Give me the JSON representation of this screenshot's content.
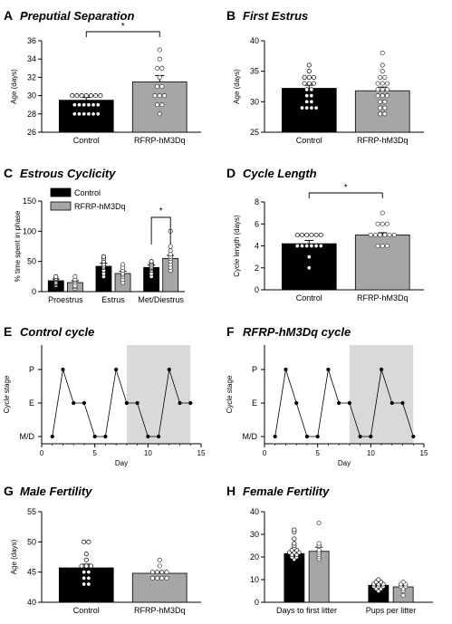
{
  "figure": {
    "panels": [
      {
        "letter": "A",
        "title": "Preputial Separation"
      },
      {
        "letter": "B",
        "title": "First Estrus"
      },
      {
        "letter": "C",
        "title": "Estrous Cyclicity"
      },
      {
        "letter": "D",
        "title": "Cycle Length"
      },
      {
        "letter": "E",
        "title": "Control cycle"
      },
      {
        "letter": "F",
        "title": "RFRP-hM3Dq cycle"
      },
      {
        "letter": "G",
        "title": "Male Fertility"
      },
      {
        "letter": "H",
        "title": "Female Fertility"
      }
    ],
    "legend": [
      {
        "label": "Control",
        "color": "#000000"
      },
      {
        "label": "RFRP-hM3Dq",
        "color": "#a6a6a6"
      }
    ],
    "colors": {
      "control": "#000000",
      "rfrp": "#a6a6a6",
      "shade": "#d9d9d9"
    }
  },
  "chart_data": [
    {
      "panel": "A",
      "type": "bar",
      "title": "Preputial Separation",
      "ylabel": "Age (days)",
      "ylim": [
        26,
        36
      ],
      "yticks": [
        26,
        28,
        30,
        32,
        34,
        36
      ],
      "categories": [
        "Control",
        "RFRP-hM3Dq"
      ],
      "values": [
        29.5,
        31.5
      ],
      "errors": [
        0.3,
        0.7
      ],
      "points": [
        [
          28,
          28,
          28,
          28,
          28,
          28,
          29,
          29,
          29,
          29,
          29,
          29,
          30,
          30,
          30,
          30,
          30,
          30,
          30
        ],
        [
          28,
          29,
          29,
          30,
          30,
          30,
          31,
          31,
          32,
          33,
          33,
          34,
          35
        ]
      ],
      "significance": [
        {
          "between": [
            0,
            1
          ],
          "label": "*"
        }
      ]
    },
    {
      "panel": "B",
      "type": "bar",
      "title": "First Estrus",
      "ylabel": "Age (days)",
      "ylim": [
        25,
        40
      ],
      "yticks": [
        25,
        30,
        35,
        40
      ],
      "categories": [
        "Control",
        "RFRP-hM3Dq"
      ],
      "values": [
        32.2,
        31.8
      ],
      "errors": [
        0.5,
        0.6
      ],
      "points": [
        [
          29,
          29,
          29,
          29,
          30,
          30,
          31,
          31,
          32,
          32,
          33,
          33,
          33,
          34,
          34,
          34,
          35,
          36
        ],
        [
          28,
          28,
          29,
          29,
          30,
          30,
          31,
          31,
          31,
          32,
          32,
          32,
          33,
          33,
          33,
          34,
          34,
          35,
          36,
          38
        ]
      ],
      "significance": []
    },
    {
      "panel": "C",
      "type": "bar",
      "title": "Estrous Cyclicity",
      "ylabel": "% time spent in phase",
      "ylim": [
        0,
        150
      ],
      "yticks": [
        0,
        50,
        100,
        150
      ],
      "categories": [
        "Proestrus",
        "Estrus",
        "Met/Diestrus"
      ],
      "series": [
        {
          "name": "Control",
          "values": [
            18,
            42,
            40
          ],
          "errors": [
            3,
            5,
            4
          ],
          "points": [
            [
              10,
              12,
              14,
              15,
              18,
              20,
              22,
              25
            ],
            [
              25,
              30,
              35,
              40,
              42,
              45,
              50,
              55,
              58
            ],
            [
              25,
              30,
              35,
              38,
              40,
              42,
              45,
              48,
              50
            ]
          ]
        },
        {
          "name": "RFRP-hM3Dq",
          "values": [
            15,
            30,
            55
          ],
          "errors": [
            3,
            4,
            5
          ],
          "points": [
            [
              5,
              8,
              10,
              15,
              18,
              20,
              25
            ],
            [
              15,
              20,
              25,
              28,
              30,
              35,
              40,
              45
            ],
            [
              35,
              40,
              45,
              50,
              55,
              58,
              62,
              68,
              75,
              100
            ]
          ]
        }
      ],
      "significance": [
        {
          "category": 2,
          "label": "*"
        }
      ]
    },
    {
      "panel": "D",
      "type": "bar",
      "title": "Cycle Length",
      "ylabel": "Cycle length (days)",
      "ylim": [
        0,
        8
      ],
      "yticks": [
        0,
        2,
        4,
        6,
        8
      ],
      "categories": [
        "Control",
        "RFRP-hM3Dq"
      ],
      "values": [
        4.2,
        5.0
      ],
      "errors": [
        0.3,
        0.2
      ],
      "points": [
        [
          2,
          3,
          4,
          4,
          4,
          4,
          4,
          4,
          5,
          5,
          5,
          5,
          5,
          5
        ],
        [
          4,
          4,
          4,
          5,
          5,
          5,
          5,
          5,
          5,
          6,
          6,
          6,
          7
        ]
      ],
      "significance": [
        {
          "between": [
            0,
            1
          ],
          "label": "*"
        }
      ]
    },
    {
      "panel": "E",
      "type": "line",
      "title": "Control cycle",
      "xlabel": "Day",
      "ylabel": "Cycle stage",
      "xlim": [
        0,
        15
      ],
      "xticks": [
        0,
        5,
        10,
        15
      ],
      "ycategories": [
        "M/D",
        "E",
        "P"
      ],
      "x": [
        1,
        2,
        3,
        4,
        5,
        6,
        7,
        8,
        9,
        10,
        11,
        12,
        13,
        14
      ],
      "y": [
        "M/D",
        "P",
        "E",
        "E",
        "M/D",
        "M/D",
        "P",
        "E",
        "E",
        "M/D",
        "M/D",
        "P",
        "E",
        "E"
      ],
      "shaded_x": [
        8,
        14
      ]
    },
    {
      "panel": "F",
      "type": "line",
      "title": "RFRP-hM3Dq cycle",
      "xlabel": "Day",
      "ylabel": "Cycle stage",
      "xlim": [
        0,
        15
      ],
      "xticks": [
        0,
        5,
        10,
        15
      ],
      "ycategories": [
        "M/D",
        "E",
        "P"
      ],
      "x": [
        1,
        2,
        3,
        4,
        5,
        6,
        7,
        8,
        9,
        10,
        11,
        12,
        13,
        14
      ],
      "y": [
        "M/D",
        "P",
        "E",
        "M/D",
        "M/D",
        "P",
        "E",
        "E",
        "M/D",
        "M/D",
        "P",
        "E",
        "E",
        "M/D"
      ],
      "shaded_x": [
        8,
        14
      ]
    },
    {
      "panel": "G",
      "type": "bar",
      "title": "Male Fertility",
      "ylabel": "Age (days)",
      "ylim": [
        40,
        55
      ],
      "yticks": [
        40,
        45,
        50,
        55
      ],
      "categories": [
        "Control",
        "RFRP-hM3Dq"
      ],
      "values": [
        45.7,
        44.8
      ],
      "errors": [
        0.6,
        0.3
      ],
      "points": [
        [
          43,
          43,
          44,
          44,
          45,
          45,
          46,
          46,
          46,
          47,
          48,
          50,
          50
        ],
        [
          44,
          44,
          44,
          44,
          45,
          45,
          45,
          45,
          46,
          47
        ]
      ],
      "significance": []
    },
    {
      "panel": "H",
      "type": "bar",
      "title": "Female Fertility",
      "ylim": [
        0,
        40
      ],
      "yticks": [
        0,
        10,
        20,
        30,
        40
      ],
      "categories": [
        "Days to first litter",
        "Pups per litter"
      ],
      "series": [
        {
          "name": "Control",
          "values": [
            21.5,
            7.5
          ],
          "errors": [
            1.0,
            0.5
          ],
          "points": [
            [
              19,
              20,
              20,
              21,
              21,
              22,
              22,
              22,
              23,
              23,
              24,
              25,
              26,
              28,
              31,
              32
            ],
            [
              5,
              6,
              6,
              7,
              7,
              7,
              8,
              8,
              8,
              9,
              9,
              10
            ]
          ]
        },
        {
          "name": "RFRP-hM3Dq",
          "values": [
            22.5,
            6.8
          ],
          "errors": [
            1.8,
            0.6
          ],
          "points": [
            [
              19,
              20,
              21,
              22,
              23,
              25,
              26,
              35
            ],
            [
              3,
              5,
              6,
              7,
              7,
              8,
              8,
              9
            ]
          ]
        }
      ],
      "significance": []
    }
  ]
}
